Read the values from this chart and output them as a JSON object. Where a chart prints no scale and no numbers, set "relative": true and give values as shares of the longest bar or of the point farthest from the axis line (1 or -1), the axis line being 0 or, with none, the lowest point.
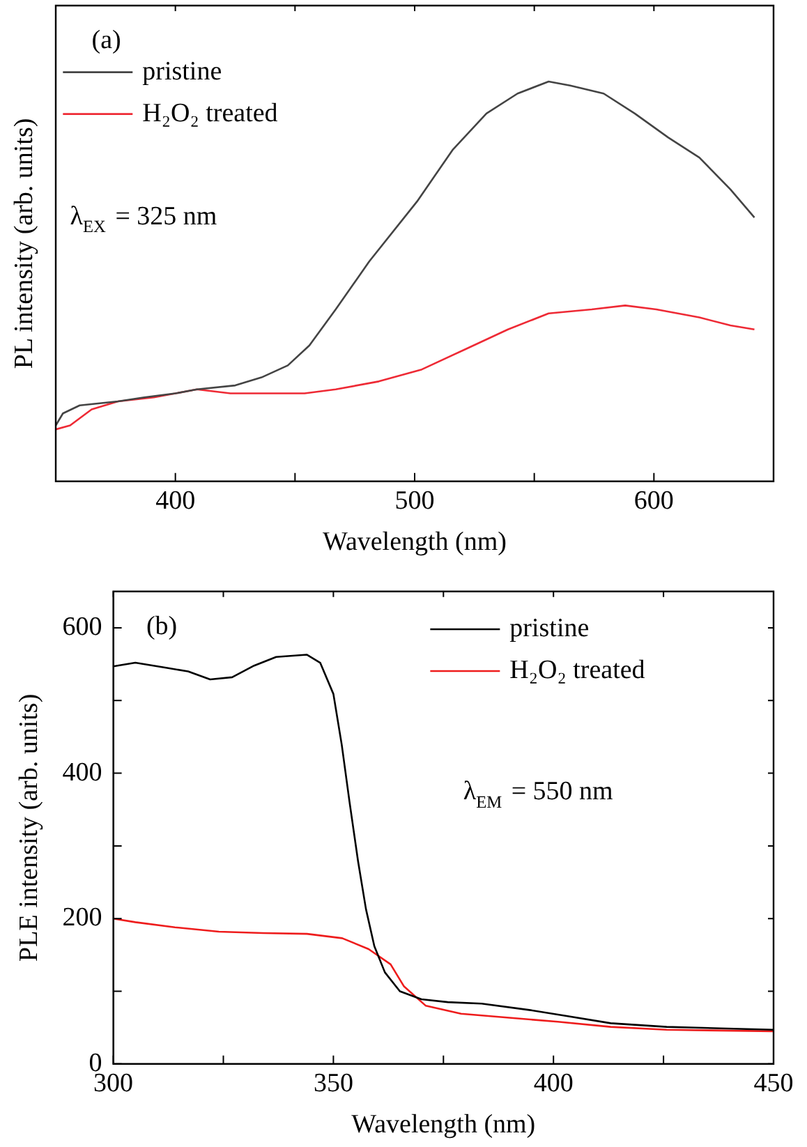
{
  "chart_data": [
    {
      "type": "line",
      "xlabel": "Wavelength (nm)",
      "ylabel": "PL intensity (arb. units)",
      "relative": true,
      "tick_labels": "x",
      "xlim": [
        350,
        650
      ],
      "xticks": [
        {
          "value": 350,
          "label": null
        },
        400,
        {
          "value": 450,
          "label": null
        },
        500,
        {
          "value": 550,
          "label": null
        },
        600,
        {
          "value": 650,
          "label": null
        }
      ],
      "legend": "top left",
      "grid": false,
      "marker": "none",
      "line_style": "solid",
      "annotations": [
        "(a)",
        "λ$_{EX}$ = 325 nm"
      ],
      "series": [
        {
          "name": "pristine",
          "color": "#444444",
          "x": [
            350,
            353,
            360,
            376,
            387,
            400,
            409,
            425,
            436,
            447,
            456,
            467,
            481,
            501,
            516,
            530,
            543,
            556,
            565,
            579,
            592,
            606,
            619,
            632,
            642
          ],
          "values": [
            0.14,
            0.17,
            0.19,
            0.2,
            0.21,
            0.22,
            0.23,
            0.24,
            0.26,
            0.29,
            0.34,
            0.43,
            0.55,
            0.7,
            0.83,
            0.92,
            0.97,
            1,
            0.99,
            0.97,
            0.92,
            0.86,
            0.81,
            0.73,
            0.66
          ]
        },
        {
          "name": "H₂O₂ treated",
          "color": "#ee2a35",
          "x": [
            350,
            356,
            365,
            376,
            391,
            409,
            423,
            436,
            454,
            467,
            485,
            503,
            521,
            539,
            556,
            574,
            588,
            601,
            619,
            632,
            642
          ],
          "values": [
            0.13,
            0.14,
            0.18,
            0.2,
            0.21,
            0.23,
            0.22,
            0.22,
            0.22,
            0.23,
            0.25,
            0.28,
            0.33,
            0.38,
            0.42,
            0.43,
            0.44,
            0.43,
            0.41,
            0.39,
            0.38
          ]
        }
      ]
    },
    {
      "type": "line",
      "xlabel": "Wavelength (nm)",
      "ylabel": "PLE intensity (arb. units)",
      "xlim": [
        300,
        450
      ],
      "xticks": [
        300,
        {
          "value": 325,
          "label": null
        },
        350,
        {
          "value": 375,
          "label": null
        },
        400,
        {
          "value": 425,
          "label": null
        },
        450
      ],
      "ylim": [
        0,
        650
      ],
      "yticks": [
        0,
        {
          "value": 100,
          "label": null
        },
        200,
        {
          "value": 300,
          "label": null
        },
        400,
        {
          "value": 500,
          "label": null
        },
        600
      ],
      "legend": "top right",
      "grid": false,
      "marker": "none",
      "line_style": "solid",
      "annotations": [
        "(b)",
        "λ$_{EM}$ = 550 nm"
      ],
      "series": [
        {
          "name": "pristine",
          "color": "#000000",
          "x": [
            300,
            305,
            312,
            317,
            322,
            327,
            332,
            337,
            344,
            347,
            350,
            351.9,
            353.7,
            355.6,
            357.4,
            359.3,
            361.7,
            365.1,
            370,
            376,
            383.7,
            394.8,
            403,
            413,
            425.7,
            438,
            450
          ],
          "values": [
            547,
            552,
            545,
            540,
            529,
            532,
            548,
            560,
            563,
            552,
            509,
            439,
            359,
            279,
            213,
            162,
            126,
            100,
            89,
            85,
            83,
            74,
            66,
            56,
            51,
            49,
            47
          ]
        },
        {
          "name": "H₂O₂ treated",
          "color": "#ee1c1c",
          "x": [
            300,
            305,
            314,
            324,
            334,
            344,
            352,
            358,
            363,
            366,
            371,
            379,
            389,
            401,
            413,
            425.7,
            450
          ],
          "values": [
            200,
            195,
            188,
            182,
            180,
            179,
            173,
            158,
            137,
            107,
            80,
            69,
            64,
            58,
            51,
            47,
            45
          ]
        }
      ]
    }
  ]
}
